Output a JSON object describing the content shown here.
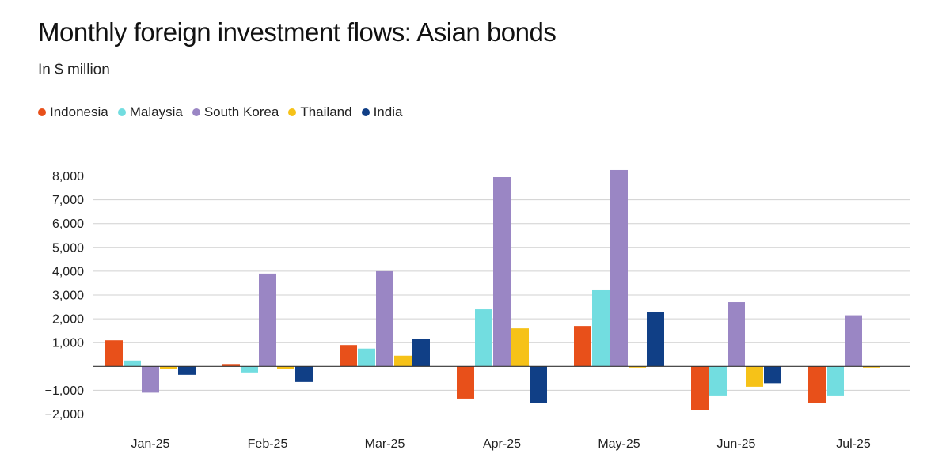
{
  "title": "Monthly foreign investment flows: Asian bonds",
  "subtitle": "In $ million",
  "chart_data": {
    "type": "bar",
    "title": "Monthly foreign investment flows: Asian bonds",
    "subtitle": "In $ million",
    "categories": [
      "Jan-25",
      "Feb-25",
      "Mar-25",
      "Apr-25",
      "May-25",
      "Jun-25",
      "Jul-25"
    ],
    "series": [
      {
        "name": "Indonesia",
        "color": "#e8501a",
        "values": [
          1100,
          100,
          900,
          -1350,
          1700,
          -1850,
          -1550
        ]
      },
      {
        "name": "Malaysia",
        "color": "#72dde0",
        "values": [
          250,
          -250,
          750,
          2400,
          3200,
          -1250,
          -1250
        ]
      },
      {
        "name": "South Korea",
        "color": "#9a86c4",
        "values": [
          -1100,
          3900,
          4000,
          7950,
          8250,
          2700,
          2150
        ]
      },
      {
        "name": "Thailand",
        "color": "#f6c218",
        "values": [
          -100,
          -100,
          450,
          1600,
          -50,
          -850,
          -50
        ]
      },
      {
        "name": "India",
        "color": "#103f86",
        "values": [
          -350,
          -650,
          1150,
          -1550,
          2300,
          -700,
          0
        ]
      }
    ],
    "ylim": [
      -2000,
      8000
    ],
    "yticks": [
      -2000,
      -1000,
      1000,
      2000,
      3000,
      4000,
      5000,
      6000,
      7000,
      8000
    ],
    "ytick_labels": [
      "−2,000",
      "−1,000",
      "1,000",
      "2,000",
      "3,000",
      "4,000",
      "5,000",
      "6,000",
      "7,000",
      "8,000"
    ],
    "xlabel": "",
    "ylabel": "",
    "grid": true,
    "legend": "top-left"
  }
}
